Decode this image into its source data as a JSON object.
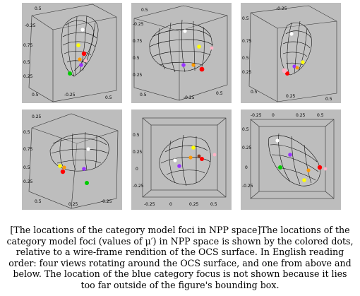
{
  "caption": {
    "text": "[The locations of the category model foci in NPP space]The locations of the category model foci (values of μ′) in NPP space is shown by the colored dots, relative to a wire-frame rendition of the OCS surface. In English reading order: four views rotating around the OCS surface, and one from above and below. The location of the blue category focus is not shown because it lies too far outside of the figure's bounding box."
  },
  "panels": [
    {
      "ticks": {
        "t1": "0.5",
        "t2": "-0.25",
        "t3": "0.75",
        "t4": "0.5",
        "t5": "0.25",
        "t6": "0.5",
        "t7": "-0.25",
        "t8": "0.5"
      }
    },
    {
      "ticks": {
        "t1": "0.5",
        "t2": "-0.25",
        "t3": "0.75",
        "t4": "0.5",
        "t5": "0.25",
        "t6": "0.5",
        "t7": "-0.25",
        "t8": "0.5"
      }
    },
    {
      "ticks": {
        "t1": "-0.25",
        "t2": "0.5",
        "t3": "0.75",
        "t4": "0.5",
        "t5": "0.25",
        "t6": "0.5",
        "t7": "0.25",
        "t8": "0.5"
      }
    },
    {
      "ticks": {
        "t1": "0.25",
        "t2": "0.5",
        "t3": "0.75",
        "t4": "0.5",
        "t5": "0.25",
        "t6": "0.5",
        "t7": "0.25",
        "t8": "-0.25"
      }
    },
    {
      "ticks": {
        "t1": "0.5",
        "t2": "0.25",
        "t3": "0",
        "t4": "-0.25",
        "t5": "-0.25",
        "t6": "0",
        "t7": "0.25",
        "t8": "0.5"
      }
    },
    {
      "ticks": {
        "t1": "-0.25",
        "t2": "0",
        "t3": "0.25",
        "t4": "0.5",
        "t5": "0.5",
        "t6": "0.25",
        "t7": "0",
        "t8": "-0.25"
      }
    }
  ],
  "dot_colors": {
    "red": "#ff0000",
    "green": "#00cc00",
    "yellow": "#ffff00",
    "purple": "#9933ff",
    "orange": "#ff9900",
    "pink": "#ffb3c6",
    "white": "#ffffff",
    "brown": "#8b3a1a"
  }
}
